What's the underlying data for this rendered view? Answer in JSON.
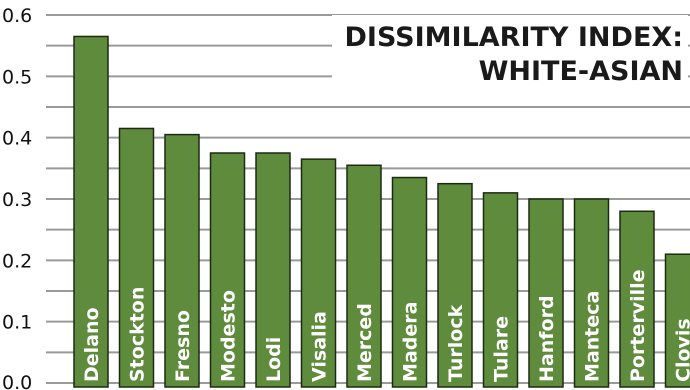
{
  "chart_data": {
    "type": "bar",
    "title_line1": "DISSIMILARITY INDEX:",
    "title_line2": "WHITE-ASIAN",
    "categories": [
      "Delano",
      "Stockton",
      "Fresno",
      "Modesto",
      "Lodi",
      "Visalia",
      "Merced",
      "Madera",
      "Turlock",
      "Tulare",
      "Hanford",
      "Manteca",
      "Porterville",
      "Clovis"
    ],
    "values": [
      0.565,
      0.415,
      0.405,
      0.375,
      0.375,
      0.365,
      0.355,
      0.335,
      0.325,
      0.31,
      0.3,
      0.3,
      0.28,
      0.21
    ],
    "ylim": [
      0,
      0.6
    ],
    "yticks": [
      0.0,
      0.1,
      0.2,
      0.3,
      0.4,
      0.5,
      0.6
    ],
    "ytick_labels": [
      "0.0",
      "0.1",
      "0.2",
      "0.3",
      "0.4",
      "0.5",
      "0.6"
    ],
    "grid": true,
    "colors": {
      "bar": "#5f8b3c",
      "bar_edge": "#1d2a12",
      "grid": "#9a9a9a",
      "label": "#ffffff"
    }
  }
}
